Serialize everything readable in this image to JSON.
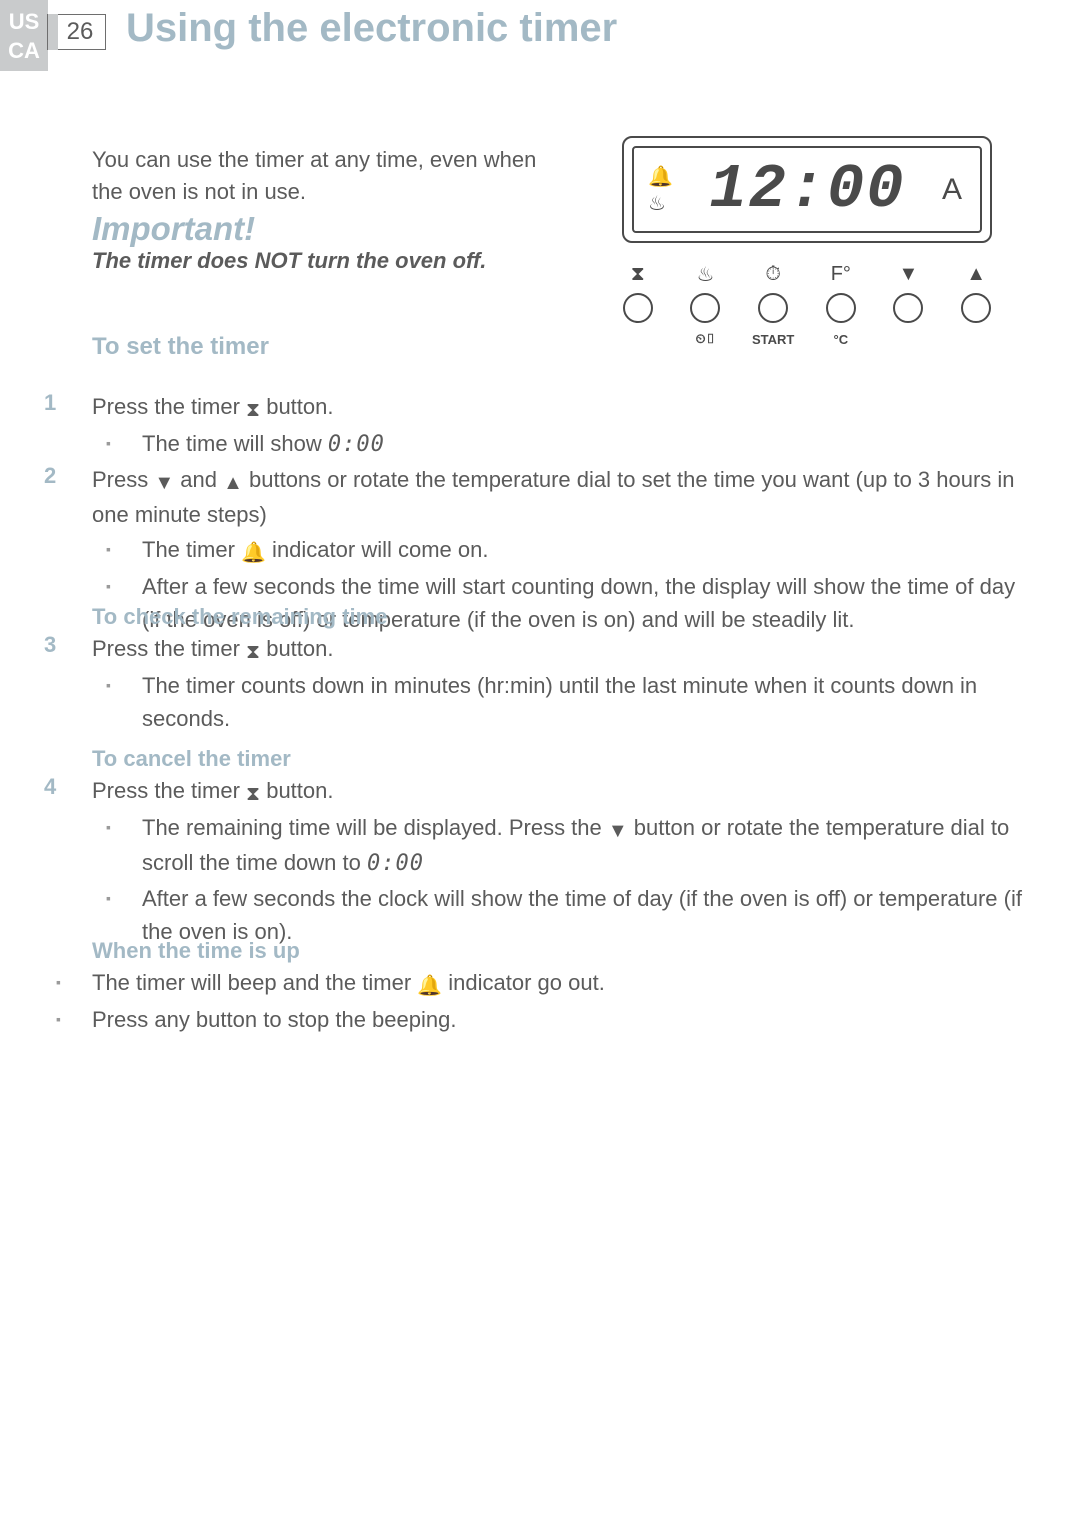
{
  "header": {
    "regions": [
      "US",
      "CA"
    ],
    "page_number": "26",
    "title": "Using the electronic timer"
  },
  "intro": "You can use the timer at any time, even when the oven is not in use.",
  "important": {
    "heading": "Important!",
    "text": "The timer does NOT turn the oven off."
  },
  "timer_display": {
    "time": "12:00",
    "ampm": "A",
    "indicator_bell": "🔔",
    "indicator_heat": "♨",
    "buttons": [
      {
        "top": "⧗",
        "bottom": ""
      },
      {
        "top": "♨",
        "bottom": "⏲▯"
      },
      {
        "top": "⏱",
        "bottom": "START"
      },
      {
        "top": "F°",
        "bottom": "°C"
      },
      {
        "top": "▼",
        "bottom": ""
      },
      {
        "top": "▲",
        "bottom": ""
      }
    ]
  },
  "sections": {
    "set_timer": {
      "heading": "To set the timer",
      "steps": [
        {
          "num": "1",
          "text_parts": [
            "Press the timer ",
            " button."
          ],
          "icon": "⧗",
          "bullets": [
            {
              "prefix": "The time will show ",
              "seg": "0:00",
              "suffix": ""
            }
          ]
        },
        {
          "num": "2",
          "text_parts": [
            "Press ",
            " and ",
            " buttons or rotate the temperature dial to set the time you want (up to 3 hours in one minute steps)"
          ],
          "icons": [
            "▼",
            "▲"
          ],
          "bullets": [
            {
              "prefix": "The timer ",
              "icon": "🔔",
              "suffix": " indicator will come on."
            },
            {
              "text": "After a few seconds the time will start counting down, the display will show the time of day (if the oven is off) or temperature (if the oven is on) and will be steadily lit."
            }
          ]
        }
      ]
    },
    "check_time": {
      "heading": "To check the remaining time",
      "steps": [
        {
          "num": "3",
          "text_parts": [
            "Press the timer ",
            " button."
          ],
          "icon": "⧗",
          "bullets": [
            {
              "text": "The timer counts down in minutes (hr:min) until the last minute when it counts down in seconds."
            }
          ]
        }
      ]
    },
    "cancel_timer": {
      "heading": "To cancel the timer",
      "steps": [
        {
          "num": "4",
          "text_parts": [
            "Press the timer ",
            " button."
          ],
          "icon": "⧗",
          "bullets": [
            {
              "prefix": "The remaining time will be displayed. Press the ",
              "icon": "▼",
              "mid": " button or rotate the temperature dial to scroll the time down to ",
              "seg": "0:00"
            },
            {
              "text": "After a few seconds the clock will show the time of day (if the oven is off) or temperature (if the oven is on)."
            }
          ]
        }
      ]
    },
    "time_up": {
      "heading": "When the time is up",
      "bullets": [
        {
          "prefix": "The timer will beep and the timer ",
          "icon": "🔔",
          "suffix": " indicator go out."
        },
        {
          "text": "Press any button to stop the beeping."
        }
      ]
    }
  },
  "colors": {
    "heading_blue": "#a3b9c5",
    "body_gray": "#5b5b5b",
    "tab_gray": "#c9cbcc",
    "line_gray": "#4a4a4a"
  }
}
